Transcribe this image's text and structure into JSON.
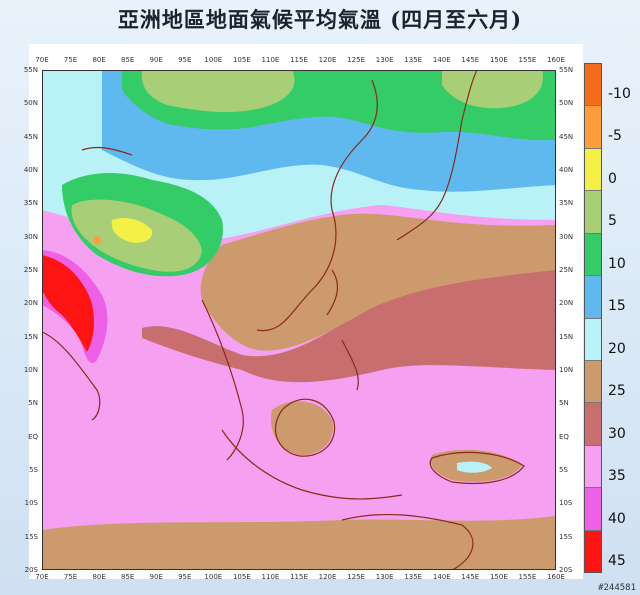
{
  "title": "亞洲地區地面氣候平均氣溫 (四月至六月)",
  "lon_labels": [
    "70E",
    "75E",
    "80E",
    "85E",
    "90E",
    "95E",
    "100E",
    "105E",
    "110E",
    "115E",
    "120E",
    "125E",
    "130E",
    "135E",
    "140E",
    "145E",
    "150E",
    "155E",
    "160E"
  ],
  "lat_labels": [
    "55N",
    "50N",
    "45N",
    "40N",
    "35N",
    "30N",
    "25N",
    "20N",
    "15N",
    "10N",
    "5N",
    "EQ",
    "5S",
    "10S",
    "15S",
    "20S"
  ],
  "legend": {
    "labels": [
      "-10",
      "-5",
      "0",
      "5",
      "10",
      "15",
      "20",
      "25",
      "30",
      "35",
      "40",
      "45"
    ],
    "colors": [
      "#f56d1a",
      "#ff9d3a",
      "#f5f046",
      "#a8cf78",
      "#33cc66",
      "#5fb8ee",
      "#b8f2f6",
      "#cc9a6c",
      "#c86e6e",
      "#f5a0f0",
      "#ee60e6",
      "#ff1414"
    ]
  },
  "corner_id": "#244581"
}
